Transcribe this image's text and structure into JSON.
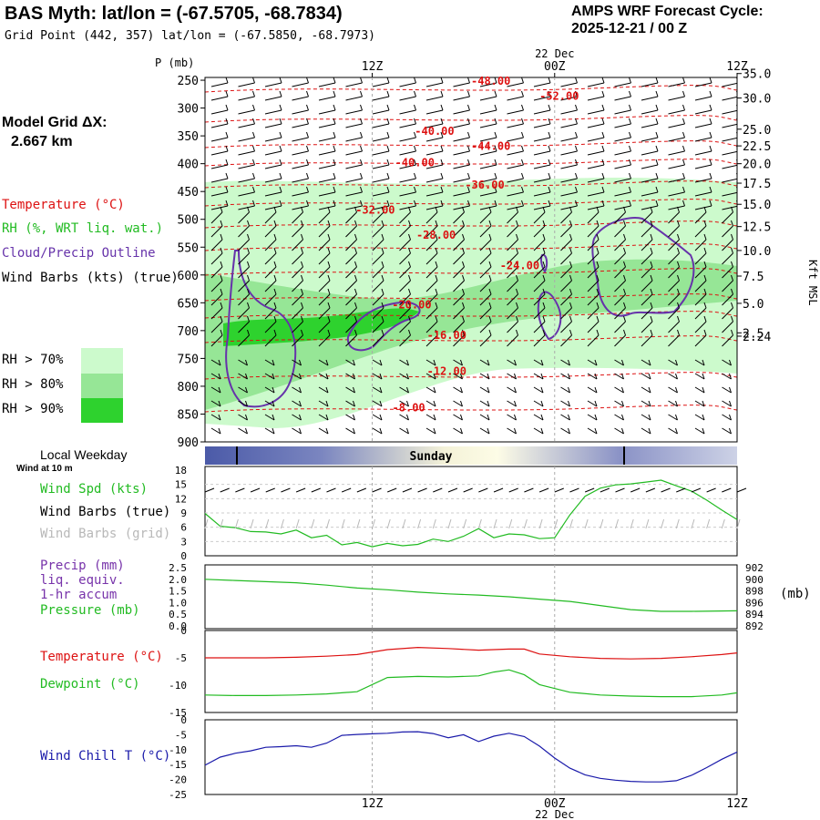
{
  "header": {
    "title": "BAS Myth:  lat/lon = (-67.5705, -68.7834)",
    "subtitle": "Grid Point (442, 357) lat/lon = (-67.5850, -68.7973)",
    "cycle_label": "AMPS WRF Forecast Cycle:",
    "cycle_value": "2025-12-21 / 00  Z"
  },
  "sidebar": {
    "model_grid_label": "Model Grid ΔX:",
    "model_grid_value": "2.667 km",
    "legend_temperature": "Temperature (°C)",
    "legend_rh": "RH (%, WRT liq. wat.)",
    "legend_cloud": "Cloud/Precip Outline",
    "legend_wind": "Wind Barbs (kts) (true)",
    "rh_levels": [
      {
        "label": "RH > 70%",
        "color": "#ccfacc"
      },
      {
        "label": "RH > 80%",
        "color": "#96e696"
      },
      {
        "label": "RH > 90%",
        "color": "#2ed22e"
      }
    ]
  },
  "colors": {
    "temperature": "#dd1111",
    "rh": "#22bb22",
    "cloud": "#6633aa",
    "wind": "#000000",
    "wind_grid": "#b8b8b8",
    "windchill": "#1a1aaa",
    "pressure": "#22bb22",
    "precip": "#7733aa"
  },
  "chart_data": [
    {
      "type": "line",
      "name": "cross-section",
      "xlabel_top": "22 Dec",
      "x_ticks": [
        "12Z",
        "00Z",
        "12Z"
      ],
      "x_ticks_hours": [
        12,
        24,
        36
      ],
      "x_range_hours": [
        1,
        36
      ],
      "ylabel": "P (mb)",
      "ylim": [
        245,
        900
      ],
      "y_ticks": [
        250,
        300,
        350,
        400,
        450,
        500,
        550,
        600,
        650,
        700,
        750,
        800,
        850,
        900
      ],
      "right_axis_label": "Kft MSL",
      "right_ticks": [
        {
          "label": "35.0",
          "p": 238
        },
        {
          "label": "30.0",
          "p": 282
        },
        {
          "label": "25.0",
          "p": 338
        },
        {
          "label": "22.5",
          "p": 368
        },
        {
          "label": "20.0",
          "p": 400
        },
        {
          "label": "17.5",
          "p": 435
        },
        {
          "label": "15.0",
          "p": 473
        },
        {
          "label": "12.5",
          "p": 513
        },
        {
          "label": "10.0",
          "p": 556
        },
        {
          "label": "7.5",
          "p": 602
        },
        {
          "label": "5.0",
          "p": 651
        },
        {
          "label": "2.5",
          "p": 704
        },
        {
          "label": "2.24",
          "p": 710
        }
      ],
      "isotherm_labels": [
        {
          "label": "-48.00",
          "h": 19.8,
          "p": 258
        },
        {
          "label": "-52.00",
          "h": 24.3,
          "p": 285
        },
        {
          "label": "-40.00",
          "h": 16.1,
          "p": 348
        },
        {
          "label": "-44.00",
          "h": 19.8,
          "p": 375
        },
        {
          "label": "-40.00",
          "h": 14.8,
          "p": 405
        },
        {
          "label": "-36.00",
          "h": 19.4,
          "p": 445
        },
        {
          "label": "-32.00",
          "h": 12.2,
          "p": 490
        },
        {
          "label": "-28.00",
          "h": 16.2,
          "p": 535
        },
        {
          "label": "-24.00",
          "h": 21.7,
          "p": 590
        },
        {
          "label": "-20.00",
          "h": 14.6,
          "p": 660
        },
        {
          "label": "-16.00",
          "h": 16.9,
          "p": 715
        },
        {
          "label": "-12.00",
          "h": 16.9,
          "p": 780
        },
        {
          "label": "-8.00",
          "h": 14.4,
          "p": 845
        }
      ]
    },
    {
      "type": "line",
      "name": "wind-speed",
      "title": "Local Weekday",
      "day_label": "Sunday",
      "subtitle": "Wind at 10 m",
      "series_label": "Wind Spd (kts)",
      "barb_label_true": "Wind Barbs (true)",
      "barb_label_grid": "Wind Barbs (grid)",
      "ylim": [
        0,
        18
      ],
      "y_ticks": [
        "0",
        "3",
        "6",
        "9",
        "12",
        "15",
        "18"
      ],
      "x": [
        1,
        2,
        3,
        4,
        5,
        6,
        7,
        8,
        9,
        10,
        11,
        12,
        13,
        14,
        15,
        16,
        17,
        18,
        19,
        20,
        21,
        22,
        23,
        24,
        25,
        26,
        27,
        28,
        29,
        30,
        31,
        32,
        33,
        34,
        35,
        36
      ],
      "values": [
        8.9,
        6.2,
        5.9,
        5.1,
        5.0,
        4.6,
        5.4,
        3.8,
        4.3,
        2.3,
        2.8,
        1.9,
        2.6,
        2.1,
        2.4,
        3.5,
        3.0,
        4.1,
        5.7,
        3.8,
        4.6,
        4.4,
        3.6,
        3.8,
        8.6,
        12.5,
        14.2,
        14.9,
        15.1,
        15.5,
        15.9,
        14.7,
        13.6,
        11.7,
        9.6,
        7.6
      ]
    },
    {
      "type": "line",
      "name": "precip-pressure",
      "labels": [
        "Precip (mm)",
        "liq. equiv.",
        "1-hr accum",
        "Pressure (mb)"
      ],
      "ylim": [
        0,
        2.5
      ],
      "y_ticks": [
        "0.0",
        "0.5",
        "1.0",
        "1.5",
        "2.0",
        "2.5"
      ],
      "y2lim": [
        892,
        902
      ],
      "y2_ticks": [
        "892",
        "894",
        "896",
        "898",
        "900",
        "902"
      ],
      "y2_unit": "(mb)",
      "x": [
        1,
        3,
        5,
        7,
        9,
        11,
        13,
        15,
        17,
        19,
        21,
        23,
        25,
        27,
        29,
        31,
        33,
        36
      ],
      "pressure": [
        900.0,
        899.8,
        899.6,
        899.4,
        899.0,
        898.5,
        898.2,
        897.8,
        897.5,
        897.3,
        897.0,
        896.6,
        896.2,
        895.5,
        894.8,
        894.5,
        894.5,
        894.6
      ]
    },
    {
      "type": "line",
      "name": "temperature-dewpoint",
      "series_labels": [
        "Temperature (°C)",
        "Dewpoint (°C)"
      ],
      "ylim": [
        -15,
        0
      ],
      "y_ticks": [
        "-5",
        "-10",
        "-15"
      ],
      "x": [
        1,
        3,
        5,
        7,
        9,
        11,
        13,
        15,
        17,
        19,
        20,
        21,
        22,
        23,
        25,
        27,
        29,
        31,
        33,
        35,
        36
      ],
      "temperature": [
        -5.0,
        -5.0,
        -5.0,
        -4.9,
        -4.7,
        -4.4,
        -3.5,
        -3.1,
        -3.3,
        -3.6,
        -3.5,
        -3.4,
        -3.4,
        -4.3,
        -4.8,
        -5.1,
        -5.2,
        -5.1,
        -4.8,
        -4.4,
        -4.1
      ],
      "dewpoint": [
        -11.8,
        -11.9,
        -11.9,
        -11.8,
        -11.6,
        -11.2,
        -8.6,
        -8.4,
        -8.5,
        -8.3,
        -7.6,
        -7.2,
        -8.1,
        -9.9,
        -11.3,
        -11.8,
        -12.0,
        -12.1,
        -12.1,
        -11.8,
        -11.4
      ]
    },
    {
      "type": "line",
      "name": "wind-chill",
      "series_label": "Wind Chill T (°C)",
      "ylim": [
        -25,
        0
      ],
      "y_ticks": [
        "-5",
        "-10",
        "-15",
        "-20",
        "-25"
      ],
      "x": [
        1,
        2,
        3,
        4,
        5,
        6,
        7,
        8,
        9,
        10,
        11,
        12,
        13,
        14,
        15,
        16,
        17,
        18,
        19,
        20,
        21,
        22,
        23,
        24,
        25,
        26,
        27,
        28,
        29,
        30,
        31,
        32,
        33,
        34,
        35,
        36
      ],
      "values": [
        -15.2,
        -12.5,
        -11.2,
        -10.4,
        -9.2,
        -9.0,
        -8.7,
        -9.2,
        -7.8,
        -5.2,
        -4.9,
        -4.7,
        -4.5,
        -4.1,
        -4.0,
        -4.6,
        -6.0,
        -5.0,
        -7.3,
        -5.5,
        -4.5,
        -5.6,
        -8.8,
        -12.8,
        -16.2,
        -18.4,
        -19.6,
        -20.2,
        -20.6,
        -20.8,
        -20.8,
        -20.4,
        -18.6,
        -16.0,
        -13.2,
        -10.8
      ],
      "x_ticks": [
        "12Z",
        "00Z",
        "12Z"
      ],
      "xlabel_bottom": "22 Dec"
    }
  ]
}
